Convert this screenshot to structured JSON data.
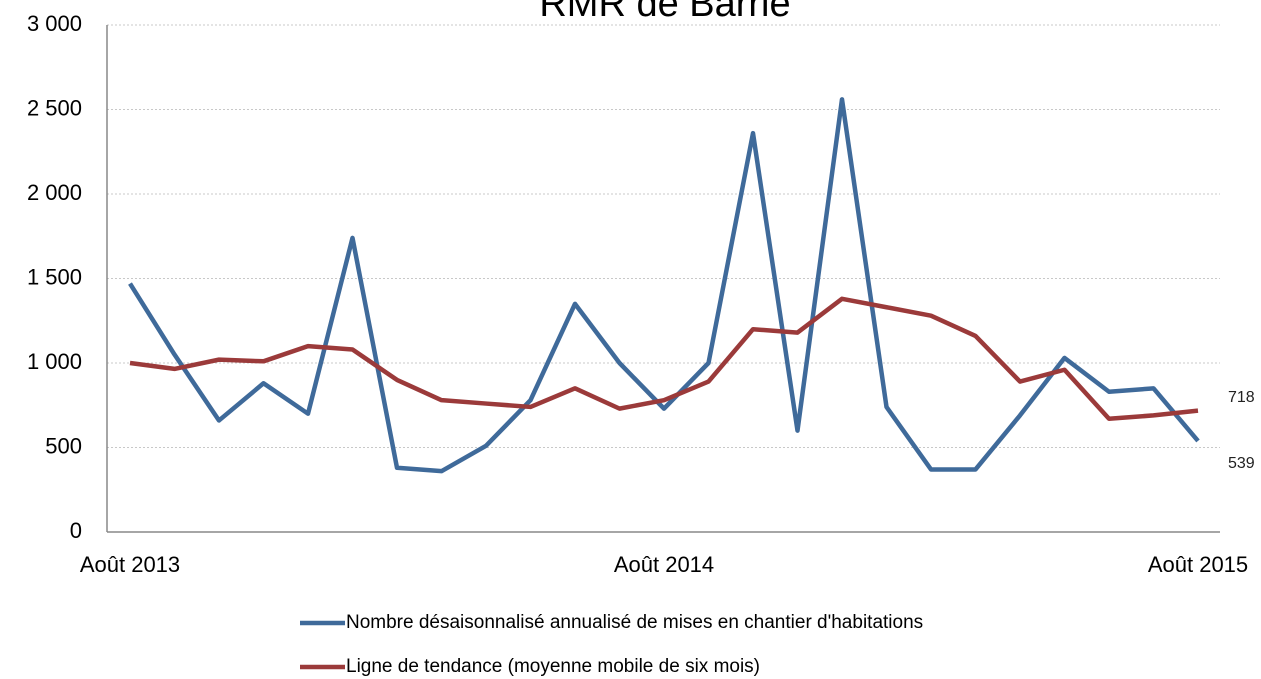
{
  "chart_data": {
    "type": "line",
    "title": "RMR de Barrie",
    "categories": [
      "Août 2013",
      null,
      null,
      null,
      null,
      null,
      null,
      null,
      null,
      null,
      null,
      null,
      "Août 2014",
      null,
      null,
      null,
      null,
      null,
      null,
      null,
      null,
      null,
      null,
      null,
      "Août 2015"
    ],
    "series": [
      {
        "name": "Nombre désaisonnalisé annualisé de mises en chantier d'habitations",
        "color": "#3f6a9a",
        "values": [
          1470,
          1050,
          660,
          880,
          700,
          1740,
          380,
          360,
          510,
          780,
          1350,
          1000,
          730,
          1000,
          2360,
          600,
          2560,
          740,
          370,
          370,
          690,
          1030,
          830,
          850,
          539
        ]
      },
      {
        "name": "Ligne de tendance (moyenne mobile de six mois)",
        "color": "#9b3a3a",
        "values": [
          1000,
          965,
          1020,
          1010,
          1100,
          1080,
          900,
          780,
          760,
          740,
          850,
          730,
          780,
          890,
          1200,
          1180,
          1380,
          1330,
          1280,
          1160,
          890,
          960,
          670,
          690,
          718
        ]
      }
    ],
    "ylim": [
      0,
      3000
    ],
    "yticks": [
      0,
      500,
      {
        "value": 1000,
        "label": "1 000"
      },
      {
        "value": 1500,
        "label": "1 500"
      },
      {
        "value": 2000,
        "label": "2 000"
      },
      {
        "value": 2500,
        "label": "2 500"
      },
      {
        "value": 3000,
        "label": "3 000"
      }
    ],
    "grid": true
  }
}
